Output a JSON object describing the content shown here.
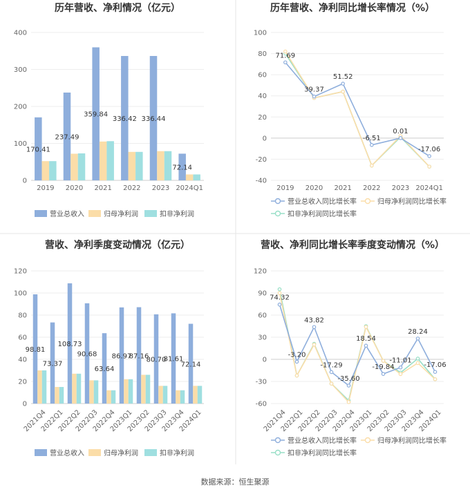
{
  "source": "数据来源：恒生聚源",
  "colors": {
    "revenue": "#8eaedc",
    "net_profit": "#fbdda8",
    "deducted_profit": "#9fdfe0",
    "line_green": "#98dfc7"
  },
  "chart_data": [
    {
      "type": "bar",
      "title": "历年营收、净利情况（亿元）",
      "categories": [
        "2019",
        "2020",
        "2021",
        "2022",
        "2023",
        "2024Q1"
      ],
      "ylim": [
        0,
        400
      ],
      "yticks": [
        0,
        100,
        200,
        300,
        400
      ],
      "legend_position": "bottom",
      "series": [
        {
          "name": "营业总收入",
          "values": [
            170.41,
            237.49,
            359.84,
            336.42,
            336.44,
            72.14
          ],
          "labels": [
            "170.41",
            "237.49",
            "359.84",
            "336.42",
            "336.44",
            "72.14"
          ]
        },
        {
          "name": "归母净利润",
          "values": [
            52,
            72,
            105,
            77,
            79,
            16
          ]
        },
        {
          "name": "扣非净利润",
          "values": [
            52,
            73,
            106,
            77,
            79,
            16
          ]
        }
      ]
    },
    {
      "type": "line",
      "title": "历年营收、净利同比增长率情况（%）",
      "categories": [
        "2019",
        "2020",
        "2021",
        "2022",
        "2023",
        "2024Q1"
      ],
      "ylim": [
        -40,
        100
      ],
      "yticks": [
        -40,
        -20,
        0,
        20,
        40,
        60,
        80,
        100
      ],
      "legend_position": "bottom",
      "series": [
        {
          "name": "营业总收入同比增长率",
          "values": [
            71.69,
            39.37,
            51.52,
            -6.51,
            0.01,
            -17.06
          ],
          "labels": [
            "71.69",
            "39.37",
            "51.52",
            "-6.51",
            "0.01",
            "-17.06"
          ]
        },
        {
          "name": "归母净利润同比增长率",
          "values": [
            82,
            38,
            44,
            -26,
            2,
            -27
          ]
        },
        {
          "name": "扣非净利润同比增长率",
          "values": [
            80,
            38,
            44,
            -26,
            1,
            -27
          ]
        }
      ]
    },
    {
      "type": "bar",
      "title": "营收、净利季度变动情况（亿元）",
      "categories": [
        "2021Q4",
        "2022Q1",
        "2022Q2",
        "2022Q3",
        "2022Q4",
        "2023Q1",
        "2023Q2",
        "2023Q3",
        "2023Q4",
        "2024Q1"
      ],
      "ylim": [
        0,
        120
      ],
      "yticks": [
        0,
        20,
        40,
        60,
        80,
        100,
        120
      ],
      "legend_position": "bottom",
      "series": [
        {
          "name": "营业总收入",
          "values": [
            98.81,
            73.37,
            108.73,
            90.68,
            63.64,
            86.97,
            87.16,
            80.7,
            81.61,
            72.14
          ],
          "labels": [
            "98.81",
            "73.37",
            "108.73",
            "90.68",
            "63.64",
            "86.97",
            "87.16",
            "80.70",
            "81.61",
            "72.14"
          ]
        },
        {
          "name": "归母净利润",
          "values": [
            30,
            15,
            27,
            21,
            12,
            22,
            26,
            16,
            12,
            16
          ]
        },
        {
          "name": "扣非净利润",
          "values": [
            30,
            15,
            27,
            21,
            12,
            22,
            26,
            16,
            12,
            16
          ]
        }
      ]
    },
    {
      "type": "line",
      "title": "营收、净利同比增长率季度变动情况（%）",
      "categories": [
        "2021Q4",
        "2022Q1",
        "2022Q2",
        "2022Q3",
        "2022Q4",
        "2023Q1",
        "2023Q2",
        "2023Q3",
        "2023Q4",
        "2024Q1"
      ],
      "ylim": [
        -60,
        120
      ],
      "yticks": [
        -60,
        -30,
        0,
        30,
        60,
        90,
        120
      ],
      "legend_position": "bottom",
      "series": [
        {
          "name": "营业总收入同比增长率",
          "values": [
            74.32,
            -3.2,
            43.82,
            -17.29,
            -35.6,
            18.54,
            -19.84,
            -11.01,
            28.24,
            -17.06
          ],
          "labels": [
            "74.32",
            "-3.20",
            "43.82",
            "-17.29",
            "-35.60",
            "18.54",
            "-19.84",
            "-11.01",
            "28.24",
            "-17.06"
          ]
        },
        {
          "name": "归母净利润同比增长率",
          "values": [
            90,
            -22,
            20,
            -33,
            -58,
            44,
            -2,
            -20,
            -5,
            -27
          ]
        },
        {
          "name": "扣非净利润同比增长率",
          "values": [
            95,
            -22,
            21,
            -33,
            -56,
            45,
            -2,
            -18,
            1,
            -27
          ]
        }
      ]
    }
  ]
}
